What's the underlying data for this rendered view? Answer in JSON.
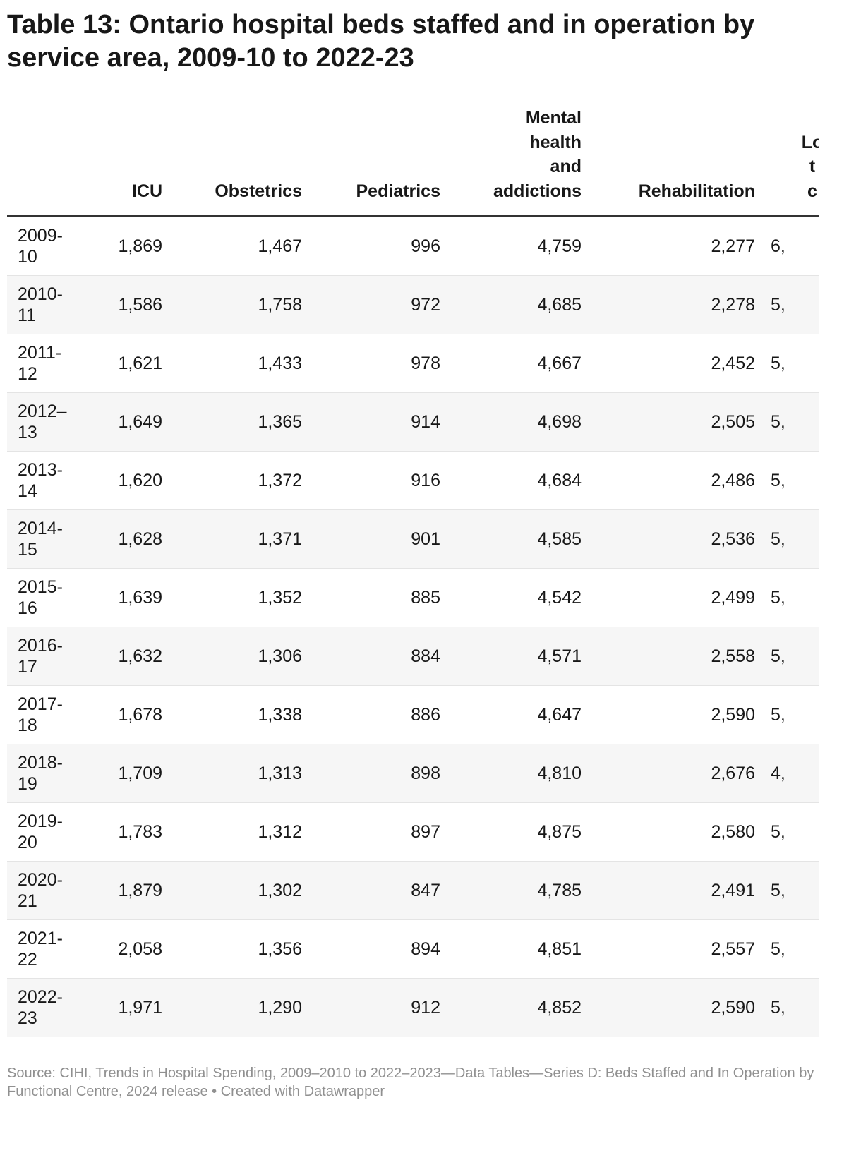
{
  "title": "Table 13: Ontario hospital beds staffed and in operation by service area, 2009-10 to 2022-23",
  "source": "Source: CIHI, Trends in Hospital Spending, 2009–2010 to 2022–2023—Data Tables—Series D: Beds Staffed and In Operation by Functional Centre, 2024 release • Created with Datawrapper",
  "chart_data": {
    "type": "table",
    "columns": [
      "",
      "ICU",
      "Obstetrics",
      "Pediatrics",
      "Mental health and addictions",
      "Rehabilitation",
      "Lo t c"
    ],
    "rows": [
      [
        "2009-10",
        "1,869",
        "1,467",
        "996",
        "4,759",
        "2,277",
        "6,"
      ],
      [
        "2010-11",
        "1,586",
        "1,758",
        "972",
        "4,685",
        "2,278",
        "5,"
      ],
      [
        "2011-12",
        "1,621",
        "1,433",
        "978",
        "4,667",
        "2,452",
        "5,"
      ],
      [
        "2012–13",
        "1,649",
        "1,365",
        "914",
        "4,698",
        "2,505",
        "5,"
      ],
      [
        "2013-14",
        "1,620",
        "1,372",
        "916",
        "4,684",
        "2,486",
        "5,"
      ],
      [
        "2014-15",
        "1,628",
        "1,371",
        "901",
        "4,585",
        "2,536",
        "5,"
      ],
      [
        "2015-16",
        "1,639",
        "1,352",
        "885",
        "4,542",
        "2,499",
        "5,"
      ],
      [
        "2016-17",
        "1,632",
        "1,306",
        "884",
        "4,571",
        "2,558",
        "5,"
      ],
      [
        "2017-18",
        "1,678",
        "1,338",
        "886",
        "4,647",
        "2,590",
        "5,"
      ],
      [
        "2018-19",
        "1,709",
        "1,313",
        "898",
        "4,810",
        "2,676",
        "4,"
      ],
      [
        "2019-20",
        "1,783",
        "1,312",
        "897",
        "4,875",
        "2,580",
        "5,"
      ],
      [
        "2020-21",
        "1,879",
        "1,302",
        "847",
        "4,785",
        "2,491",
        "5,"
      ],
      [
        "2021-22",
        "2,058",
        "1,356",
        "894",
        "4,851",
        "2,557",
        "5,"
      ],
      [
        "2022-23",
        "1,971",
        "1,290",
        "912",
        "4,852",
        "2,590",
        "5,"
      ]
    ]
  }
}
